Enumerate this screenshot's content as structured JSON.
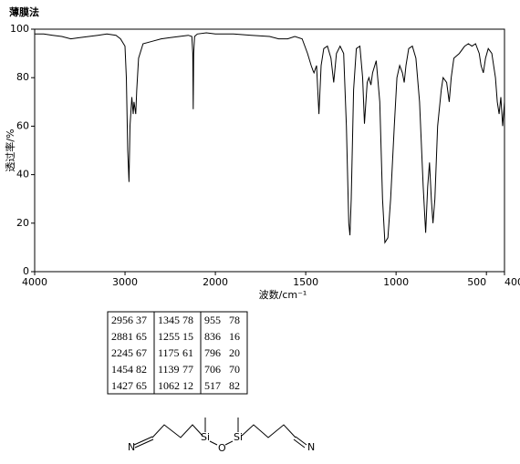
{
  "chart_data": {
    "type": "line",
    "title": "薄膜法",
    "xlabel": "波数/cm⁻¹",
    "ylabel": "透过率/%",
    "xlim": [
      4000,
      400
    ],
    "ylim": [
      0,
      100
    ],
    "x_scale_break": 2000,
    "xticks": [
      4000,
      3000,
      2000,
      1500,
      1000,
      500,
      400
    ],
    "yticks": [
      0,
      20,
      40,
      60,
      80,
      100
    ],
    "grid": false,
    "color": "#000000",
    "x": [
      4000,
      3900,
      3800,
      3700,
      3600,
      3500,
      3400,
      3300,
      3200,
      3100,
      3050,
      3000,
      2985,
      2970,
      2956,
      2945,
      2925,
      2910,
      2900,
      2881,
      2870,
      2850,
      2800,
      2700,
      2600,
      2500,
      2400,
      2300,
      2260,
      2250,
      2245,
      2240,
      2230,
      2200,
      2100,
      2000,
      1900,
      1800,
      1700,
      1650,
      1600,
      1560,
      1520,
      1490,
      1470,
      1460,
      1454,
      1440,
      1427,
      1415,
      1400,
      1380,
      1360,
      1345,
      1330,
      1310,
      1290,
      1275,
      1262,
      1255,
      1248,
      1235,
      1220,
      1200,
      1185,
      1175,
      1160,
      1150,
      1139,
      1130,
      1110,
      1090,
      1075,
      1062,
      1045,
      1030,
      1010,
      995,
      980,
      965,
      955,
      945,
      930,
      910,
      890,
      870,
      850,
      836,
      825,
      815,
      805,
      796,
      785,
      770,
      750,
      740,
      720,
      706,
      695,
      680,
      650,
      620,
      600,
      580,
      560,
      540,
      530,
      517,
      505,
      490,
      470,
      460,
      450,
      440,
      430,
      420,
      410,
      400
    ],
    "values": [
      98,
      98,
      97.5,
      97,
      96,
      96.5,
      97,
      97.5,
      98,
      97.5,
      96,
      93,
      80,
      50,
      37,
      60,
      72,
      65,
      70,
      65,
      75,
      88,
      94,
      95,
      96,
      96.5,
      97,
      97.5,
      97,
      90,
      67,
      90,
      97,
      98,
      98.5,
      98,
      98,
      97.5,
      97,
      96,
      96,
      97,
      96,
      90,
      85,
      83,
      82,
      85,
      65,
      85,
      92,
      93,
      88,
      78,
      90,
      93,
      90,
      60,
      20,
      15,
      30,
      75,
      92,
      93,
      80,
      61,
      78,
      80,
      77,
      82,
      87,
      70,
      30,
      12,
      14,
      30,
      60,
      80,
      85,
      82,
      78,
      85,
      92,
      93,
      88,
      70,
      35,
      16,
      35,
      45,
      30,
      20,
      30,
      60,
      75,
      80,
      78,
      70,
      80,
      88,
      90,
      93,
      94,
      93,
      94,
      90,
      85,
      82,
      88,
      92,
      90,
      85,
      80,
      70,
      65,
      72,
      60,
      70
    ]
  },
  "peak_table": [
    [
      [
        2956,
        37
      ],
      [
        1345,
        78
      ],
      [
        955,
        78
      ]
    ],
    [
      [
        2881,
        65
      ],
      [
        1255,
        15
      ],
      [
        836,
        16
      ]
    ],
    [
      [
        2245,
        67
      ],
      [
        1175,
        61
      ],
      [
        796,
        20
      ]
    ],
    [
      [
        1454,
        82
      ],
      [
        1139,
        77
      ],
      [
        706,
        70
      ]
    ],
    [
      [
        1427,
        65
      ],
      [
        1062,
        12
      ],
      [
        517,
        82
      ]
    ]
  ],
  "structure": {
    "atoms": [
      "N",
      "Si",
      "O",
      "Si",
      "N"
    ]
  }
}
